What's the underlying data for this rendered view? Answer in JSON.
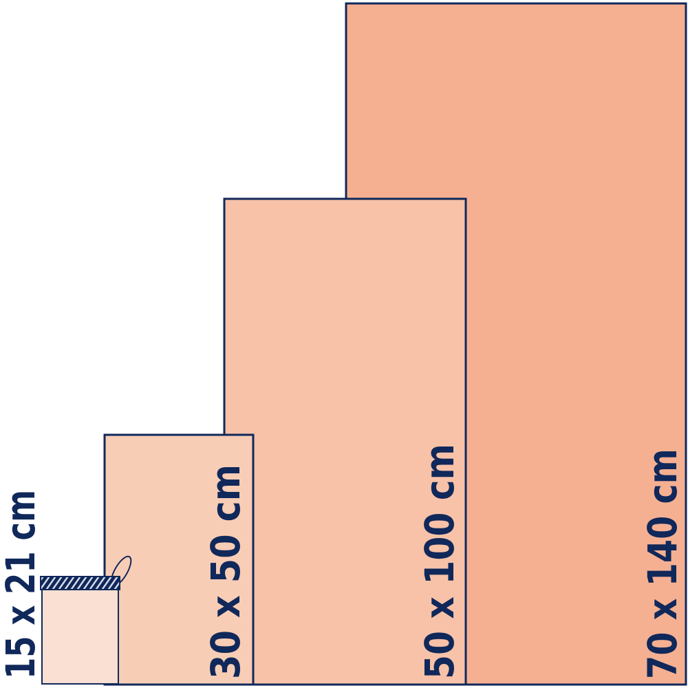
{
  "colors": {
    "outline": "#10285a",
    "towel_70x140": "#f5b092",
    "towel_50x100": "#f7c2a8",
    "towel_30x50": "#f8cdb6",
    "towel_15x21": "#fae0d3",
    "background": "#ffffff"
  },
  "towels": [
    {
      "label": "70 x 140 cm"
    },
    {
      "label": "50 x 100 cm"
    },
    {
      "label": "30 x 50 cm"
    },
    {
      "label": "15 x 21 cm"
    }
  ]
}
